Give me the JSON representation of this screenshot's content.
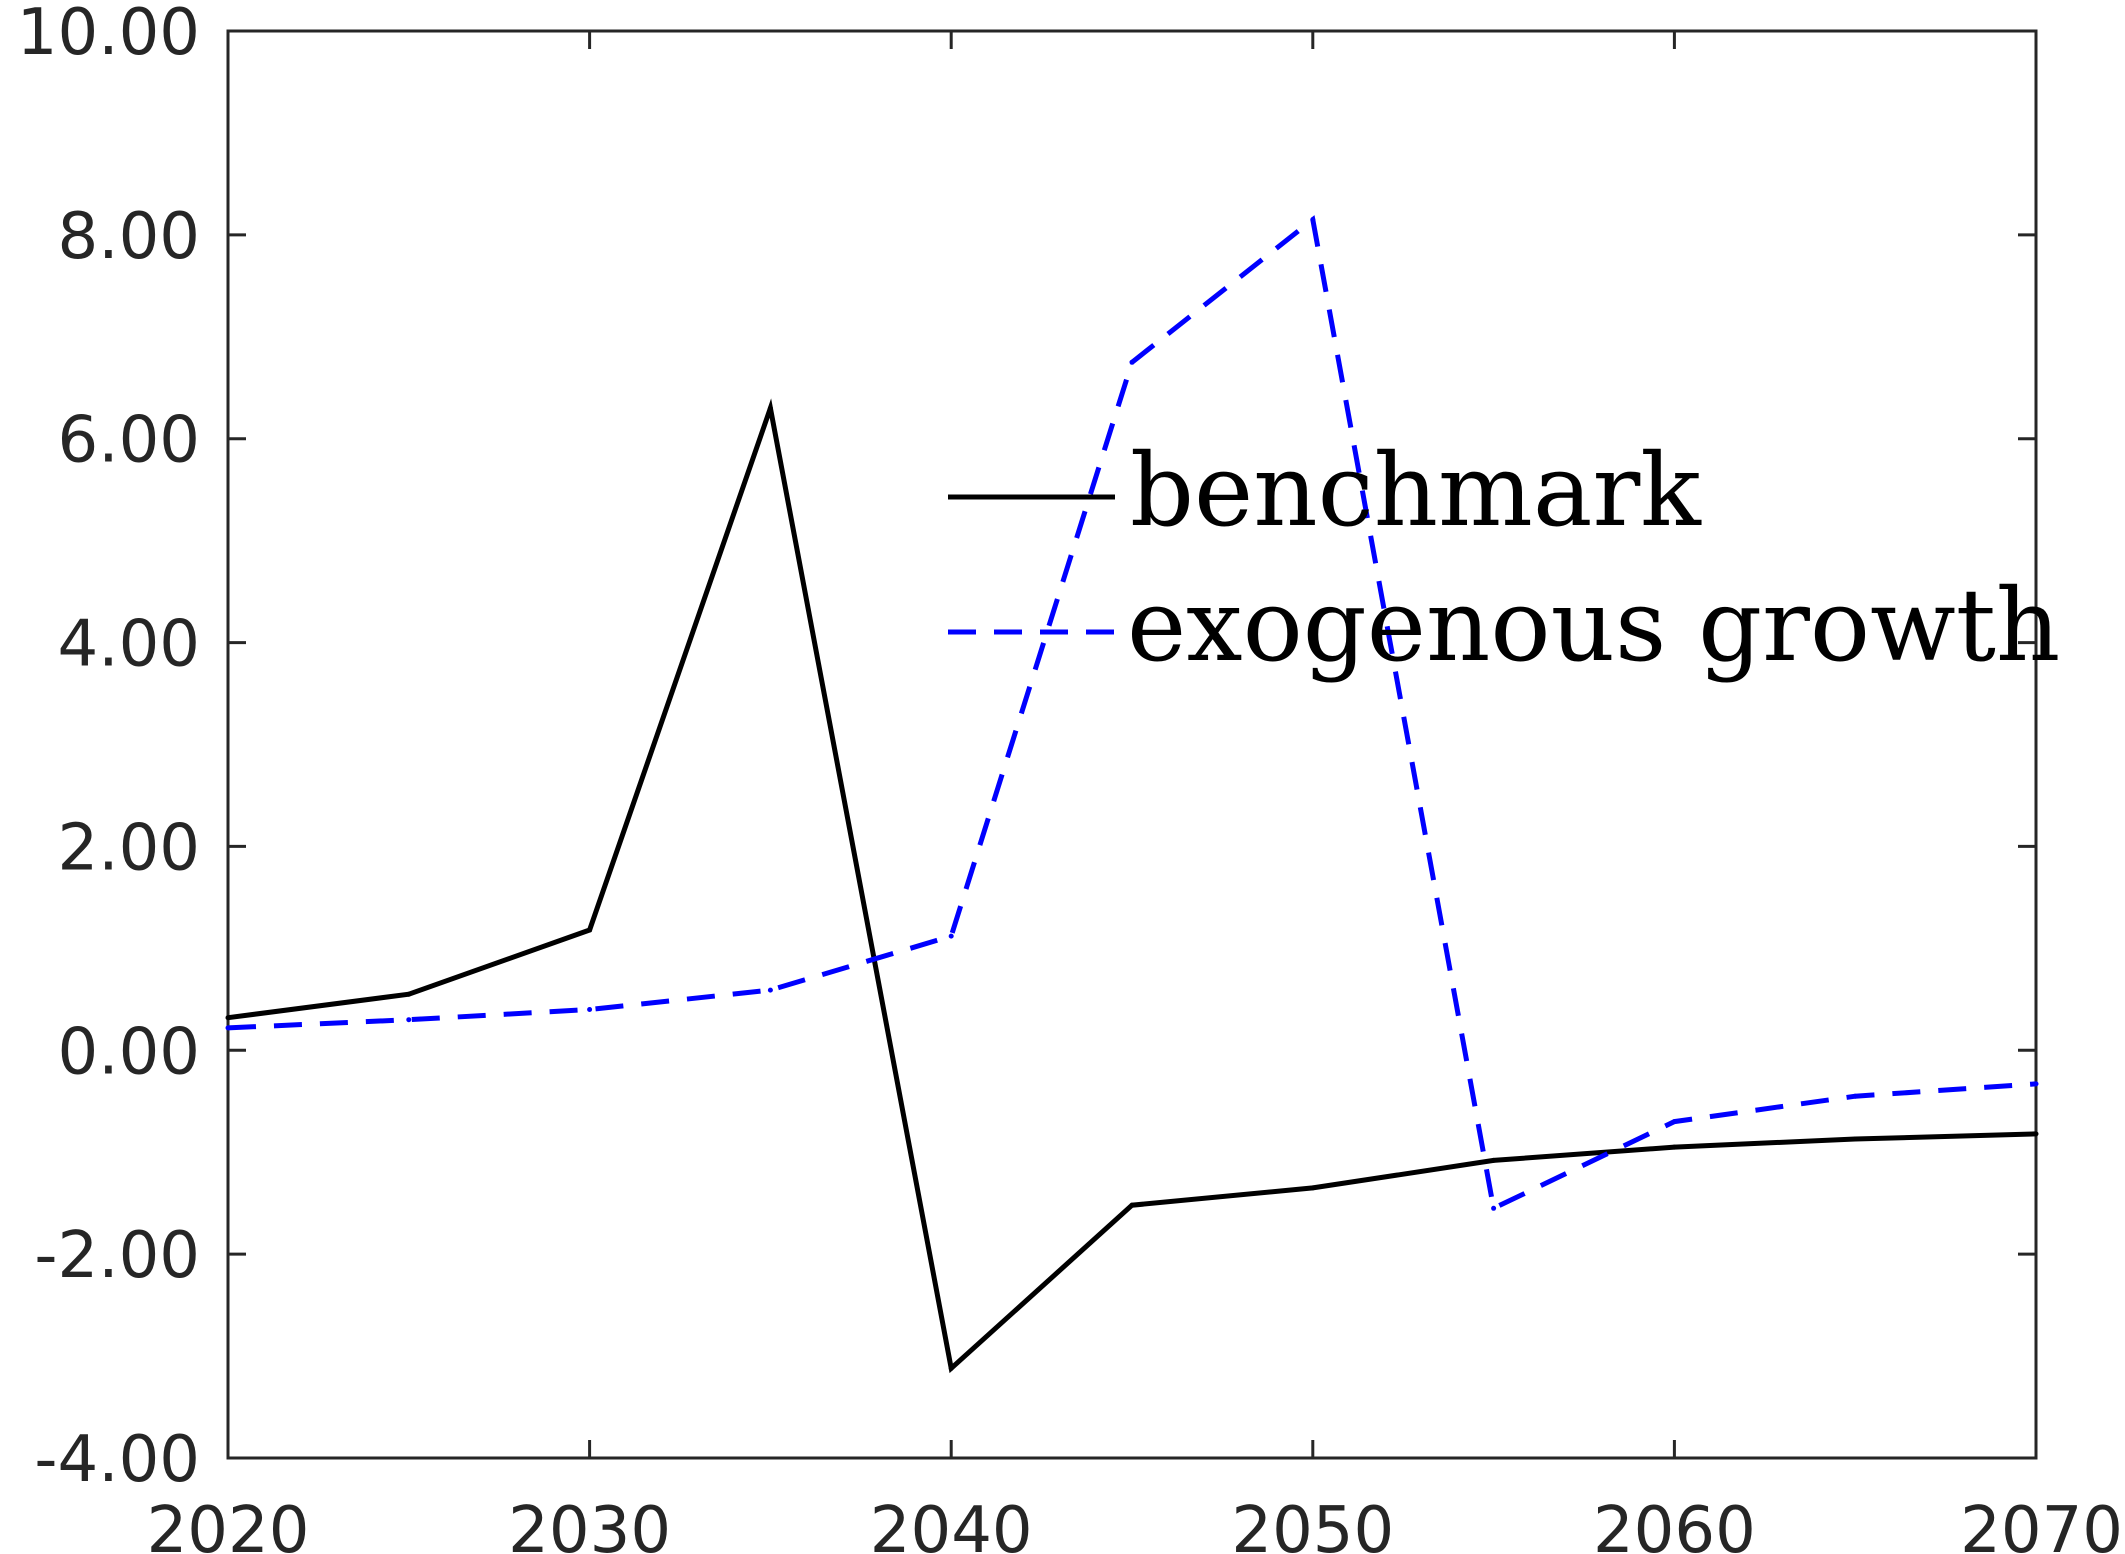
{
  "chart_data": {
    "type": "line",
    "x": [
      2020,
      2025,
      2030,
      2035,
      2040,
      2045,
      2050,
      2055,
      2060,
      2065,
      2070
    ],
    "series": [
      {
        "name": "benchmark",
        "color": "#000000",
        "style": "solid",
        "values": [
          0.32,
          0.55,
          1.18,
          6.3,
          -3.12,
          -1.52,
          -1.35,
          -1.08,
          -0.95,
          -0.87,
          -0.82
        ]
      },
      {
        "name": "exogenous growth",
        "color": "#0000ff",
        "style": "dashed",
        "values": [
          0.22,
          0.3,
          0.4,
          0.59,
          1.12,
          6.75,
          8.15,
          -1.55,
          -0.7,
          -0.45,
          -0.33
        ]
      }
    ],
    "xlim": [
      2020,
      2070
    ],
    "ylim": [
      -4,
      10
    ],
    "x_ticks": [
      "2020",
      "2030",
      "2040",
      "2050",
      "2060",
      "2070"
    ],
    "y_ticks": [
      "-4.00",
      "-2.00",
      "0.00",
      "2.00",
      "4.00",
      "6.00",
      "8.00",
      "10.00"
    ],
    "grid": false,
    "legend_position": "upper-right"
  }
}
